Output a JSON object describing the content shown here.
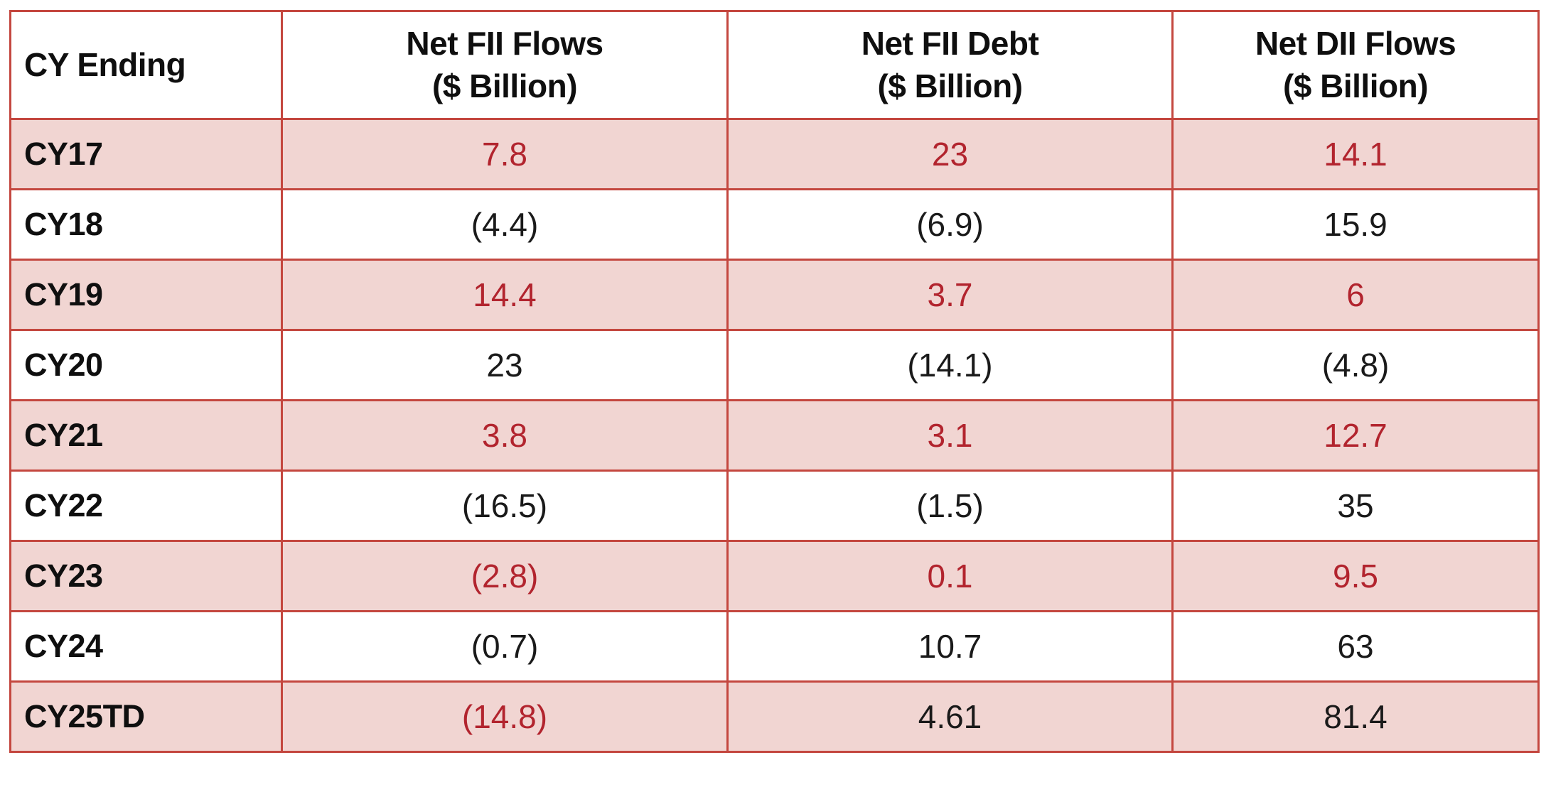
{
  "table": {
    "columns": [
      {
        "label": "CY Ending",
        "sublabel": ""
      },
      {
        "label": "Net FII Flows",
        "sublabel": "($ Billion)"
      },
      {
        "label": "Net FII Debt",
        "sublabel": "($ Billion)"
      },
      {
        "label": "Net DII Flows",
        "sublabel": "($ Billion)"
      }
    ],
    "rows": [
      {
        "year": "CY17",
        "fii_flows": "7.8",
        "fii_debt": "23",
        "dii_flows": "14.1"
      },
      {
        "year": "CY18",
        "fii_flows": "(4.4)",
        "fii_debt": "(6.9)",
        "dii_flows": "15.9"
      },
      {
        "year": "CY19",
        "fii_flows": "14.4",
        "fii_debt": "3.7",
        "dii_flows": "6"
      },
      {
        "year": "CY20",
        "fii_flows": "23",
        "fii_debt": "(14.1)",
        "dii_flows": "(4.8)"
      },
      {
        "year": "CY21",
        "fii_flows": "3.8",
        "fii_debt": "3.1",
        "dii_flows": "12.7"
      },
      {
        "year": "CY22",
        "fii_flows": "(16.5)",
        "fii_debt": "(1.5)",
        "dii_flows": "35"
      },
      {
        "year": "CY23",
        "fii_flows": "(2.8)",
        "fii_debt": "0.1",
        "dii_flows": "9.5"
      },
      {
        "year": "CY24",
        "fii_flows": "(0.7)",
        "fii_debt": "10.7",
        "dii_flows": "63"
      },
      {
        "year": "CY25TD",
        "fii_flows": "(14.8)",
        "fii_debt": "4.61",
        "dii_flows": "81.4"
      }
    ]
  },
  "colors": {
    "highlight_row_bg": "#f1d5d2",
    "border_red": "#c4473f",
    "highlight_text_red": "#b2242e",
    "text_black": "#1a1a1a",
    "page_bg": "#ffffff"
  },
  "chart_data": {
    "type": "table",
    "title": "",
    "columns": [
      "CY Ending",
      "Net FII Flows ($ Billion)",
      "Net FII Debt ($ Billion)",
      "Net DII Flows ($ Billion)"
    ],
    "rows": [
      [
        "CY17",
        7.8,
        23,
        14.1
      ],
      [
        "CY18",
        -4.4,
        -6.9,
        15.9
      ],
      [
        "CY19",
        14.4,
        3.7,
        6
      ],
      [
        "CY20",
        23,
        -14.1,
        -4.8
      ],
      [
        "CY21",
        3.8,
        3.1,
        12.7
      ],
      [
        "CY22",
        -16.5,
        -1.5,
        35
      ],
      [
        "CY23",
        -2.8,
        0.1,
        9.5
      ],
      [
        "CY24",
        -0.7,
        10.7,
        63
      ],
      [
        "CY25TD",
        -14.8,
        4.61,
        81.4
      ]
    ],
    "notes": "Values in parentheses are negative; alternating rows highlighted pink with red text"
  }
}
